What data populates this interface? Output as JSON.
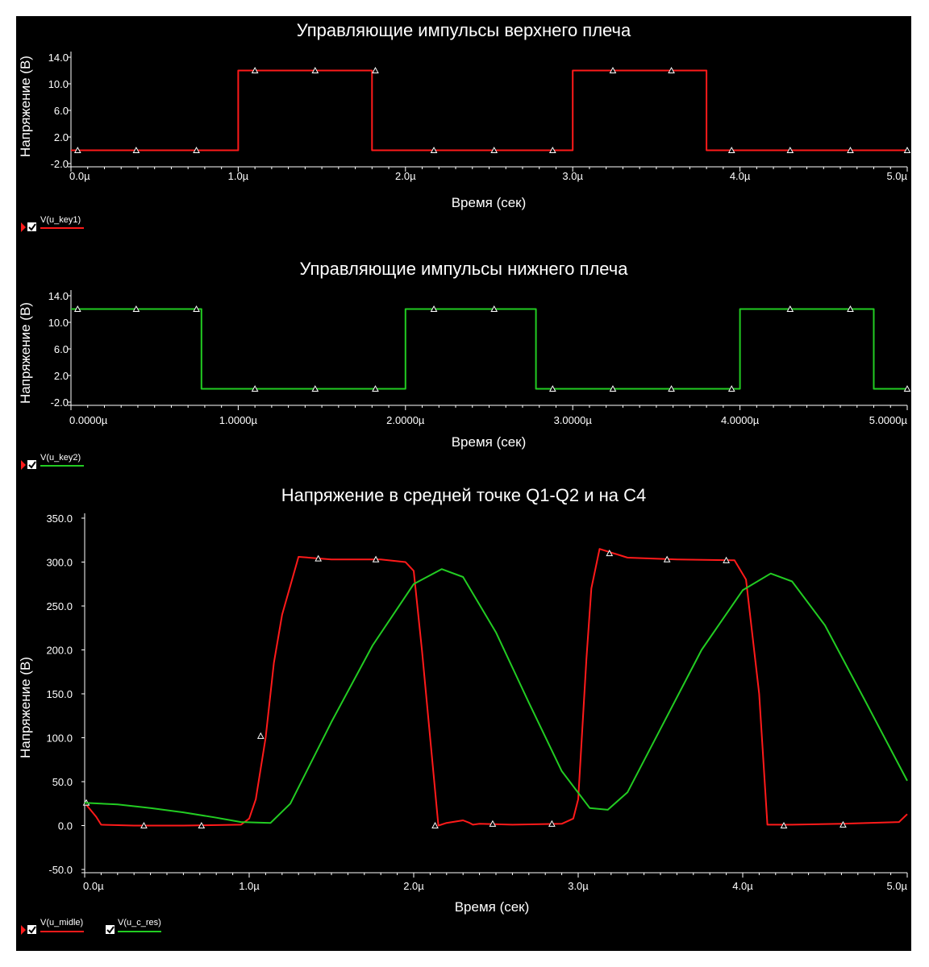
{
  "chart_data": [
    {
      "type": "line",
      "title": "Управляющие импульсы верхнего плеча",
      "xlabel": "Время (сек)",
      "ylabel": "Напряжение (В)",
      "xlim": [
        0,
        5
      ],
      "ylim": [
        -2.0,
        14.0
      ],
      "yticks": [
        14.0,
        10.0,
        6.0,
        2.0,
        -2.0
      ],
      "ytick_labels": [
        "14.0",
        "10.0",
        "6.0",
        "2.0",
        "-2.0"
      ],
      "xticks": [
        0,
        1,
        2,
        3,
        4,
        5
      ],
      "xtick_labels": [
        "0.0µ",
        "1.0µ",
        "2.0µ",
        "3.0µ",
        "4.0µ",
        "5.0µ"
      ],
      "series": [
        {
          "name": "V(u_key1)",
          "color": "#ff1a1a",
          "x": [
            0,
            1.0,
            1.0,
            1.8,
            1.8,
            3.0,
            3.0,
            3.8,
            3.8,
            5.0
          ],
          "y": [
            0,
            0,
            12,
            12,
            0,
            0,
            12,
            12,
            0,
            0
          ],
          "markers_x": [
            0.04,
            0.39,
            0.75,
            1.1,
            1.46,
            1.82,
            2.17,
            2.53,
            2.88,
            3.24,
            3.59,
            3.95,
            4.3,
            4.66,
            5.0
          ],
          "markers_y": [
            0,
            0,
            0,
            12,
            12,
            12,
            0,
            0,
            0,
            12,
            12,
            0,
            0,
            0,
            0
          ]
        }
      ]
    },
    {
      "type": "line",
      "title": "Управляющие импульсы нижнего плеча",
      "xlabel": "Время (сек)",
      "ylabel": "Напряжение (В)",
      "xlim": [
        0,
        5
      ],
      "ylim": [
        -2.0,
        14.0
      ],
      "yticks": [
        14.0,
        10.0,
        6.0,
        2.0,
        -2.0
      ],
      "ytick_labels": [
        "14.0",
        "10.0",
        "6.0",
        "2.0",
        "-2.0"
      ],
      "xticks": [
        0,
        1,
        2,
        3,
        4,
        5
      ],
      "xtick_labels": [
        "0.0000µ",
        "1.0000µ",
        "2.0000µ",
        "3.0000µ",
        "4.0000µ",
        "5.0000µ"
      ],
      "series": [
        {
          "name": "V(u_key2)",
          "color": "#22cc22",
          "x": [
            0,
            0.78,
            0.78,
            2.0,
            2.0,
            2.78,
            2.78,
            4.0,
            4.0,
            4.8,
            4.8,
            5.0
          ],
          "y": [
            12,
            12,
            0,
            0,
            12,
            12,
            0,
            0,
            12,
            12,
            0,
            0
          ],
          "markers_x": [
            0.04,
            0.39,
            0.75,
            1.1,
            1.46,
            1.82,
            2.17,
            2.53,
            2.88,
            3.24,
            3.59,
            3.95,
            4.3,
            4.66,
            5.0
          ],
          "markers_y": [
            12,
            12,
            12,
            0,
            0,
            0,
            12,
            12,
            0,
            0,
            0,
            0,
            12,
            12,
            0
          ]
        }
      ]
    },
    {
      "type": "line",
      "title": "Напряжение в средней точке Q1-Q2 и на C4",
      "xlabel": "Время (сек)",
      "ylabel": "Напряжение (В)",
      "xlim": [
        0,
        5
      ],
      "ylim": [
        -50.0,
        350.0
      ],
      "yticks": [
        350,
        300,
        250,
        200,
        150,
        100,
        50,
        0,
        -50
      ],
      "ytick_labels": [
        "350.0",
        "300.0",
        "250.0",
        "200.0",
        "150.0",
        "100.0",
        "50.0",
        "0.0",
        "-50.0"
      ],
      "xticks": [
        0,
        1,
        2,
        3,
        4,
        5
      ],
      "xtick_labels": [
        "0.0µ",
        "1.0µ",
        "2.0µ",
        "3.0µ",
        "4.0µ",
        "5.0µ"
      ],
      "series": [
        {
          "name": "V(u_midle)",
          "color": "#ff1a1a",
          "x": [
            0,
            0.07,
            0.1,
            0.3,
            0.6,
            0.95,
            1.0,
            1.04,
            1.1,
            1.15,
            1.2,
            1.3,
            1.5,
            1.8,
            1.95,
            2.0,
            2.05,
            2.15,
            2.2,
            2.3,
            2.34,
            2.36,
            2.4,
            2.6,
            2.9,
            2.97,
            3.0,
            3.05,
            3.08,
            3.13,
            3.3,
            3.6,
            3.95,
            4.02,
            4.1,
            4.15,
            4.3,
            4.6,
            4.95,
            5.0
          ],
          "y": [
            26,
            10,
            1,
            0,
            0,
            1,
            8,
            30,
            100,
            185,
            240,
            306,
            303,
            303,
            300,
            290,
            200,
            0,
            3,
            6,
            3,
            1,
            2,
            1,
            2,
            8,
            30,
            190,
            270,
            315,
            305,
            303,
            302,
            280,
            150,
            1,
            1,
            2,
            4,
            13
          ],
          "markers_x": [
            0.01,
            0.36,
            0.71,
            1.07,
            1.42,
            1.77,
            2.13,
            2.48,
            2.84,
            3.19,
            3.54,
            3.9,
            4.25,
            4.61
          ],
          "markers_y": [
            26,
            0,
            0,
            102,
            304,
            303,
            0,
            2,
            2,
            310,
            303,
            302,
            0,
            1
          ]
        },
        {
          "name": "V(u_c_res)",
          "color": "#22cc22",
          "x": [
            0,
            0.2,
            0.4,
            0.6,
            0.8,
            0.95,
            1.13,
            1.25,
            1.5,
            1.75,
            2.0,
            2.17,
            2.3,
            2.5,
            2.7,
            2.9,
            3.07,
            3.18,
            3.3,
            3.5,
            3.75,
            4.0,
            4.17,
            4.3,
            4.5,
            4.75,
            5.0
          ],
          "y": [
            26,
            24,
            20,
            15,
            9,
            4,
            3,
            25,
            118,
            205,
            275,
            292,
            283,
            220,
            140,
            62,
            20,
            18,
            38,
            110,
            200,
            268,
            287,
            278,
            228,
            140,
            51
          ]
        }
      ]
    }
  ],
  "legend": {
    "items": [
      {
        "label": "V(u_key1)",
        "color": "#ff1a1a"
      },
      {
        "label": "V(u_key2)",
        "color": "#22cc22"
      },
      {
        "label": "V(u_midle)",
        "color": "#ff1a1a"
      },
      {
        "label": "V(u_c_res)",
        "color": "#22cc22"
      }
    ]
  },
  "colors": {
    "background": "#000000",
    "text": "#ffffff",
    "frame_outer": "#ffffff"
  }
}
